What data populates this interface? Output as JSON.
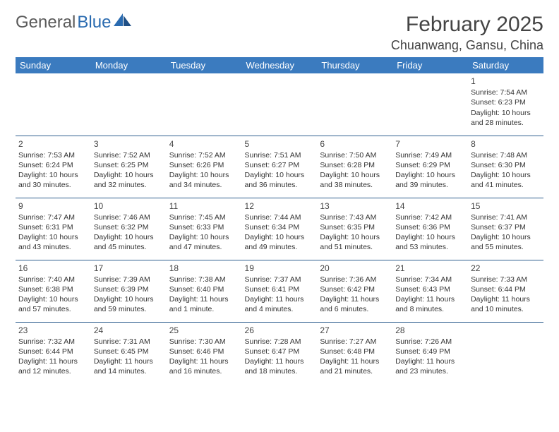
{
  "logo": {
    "text1": "General",
    "text2": "Blue"
  },
  "title": "February 2025",
  "location": "Chuanwang, Gansu, China",
  "colors": {
    "header_bg": "#3b7bbf",
    "header_text": "#ffffff",
    "divider": "#2f5f8f",
    "logo_gray": "#5a5a5a",
    "logo_blue": "#2a6bb0",
    "text": "#333333",
    "title_text": "#444444",
    "background": "#ffffff"
  },
  "day_headers": [
    "Sunday",
    "Monday",
    "Tuesday",
    "Wednesday",
    "Thursday",
    "Friday",
    "Saturday"
  ],
  "weeks": [
    [
      null,
      null,
      null,
      null,
      null,
      null,
      {
        "n": "1",
        "sr": "Sunrise: 7:54 AM",
        "ss": "Sunset: 6:23 PM",
        "dl": "Daylight: 10 hours and 28 minutes."
      }
    ],
    [
      {
        "n": "2",
        "sr": "Sunrise: 7:53 AM",
        "ss": "Sunset: 6:24 PM",
        "dl": "Daylight: 10 hours and 30 minutes."
      },
      {
        "n": "3",
        "sr": "Sunrise: 7:52 AM",
        "ss": "Sunset: 6:25 PM",
        "dl": "Daylight: 10 hours and 32 minutes."
      },
      {
        "n": "4",
        "sr": "Sunrise: 7:52 AM",
        "ss": "Sunset: 6:26 PM",
        "dl": "Daylight: 10 hours and 34 minutes."
      },
      {
        "n": "5",
        "sr": "Sunrise: 7:51 AM",
        "ss": "Sunset: 6:27 PM",
        "dl": "Daylight: 10 hours and 36 minutes."
      },
      {
        "n": "6",
        "sr": "Sunrise: 7:50 AM",
        "ss": "Sunset: 6:28 PM",
        "dl": "Daylight: 10 hours and 38 minutes."
      },
      {
        "n": "7",
        "sr": "Sunrise: 7:49 AM",
        "ss": "Sunset: 6:29 PM",
        "dl": "Daylight: 10 hours and 39 minutes."
      },
      {
        "n": "8",
        "sr": "Sunrise: 7:48 AM",
        "ss": "Sunset: 6:30 PM",
        "dl": "Daylight: 10 hours and 41 minutes."
      }
    ],
    [
      {
        "n": "9",
        "sr": "Sunrise: 7:47 AM",
        "ss": "Sunset: 6:31 PM",
        "dl": "Daylight: 10 hours and 43 minutes."
      },
      {
        "n": "10",
        "sr": "Sunrise: 7:46 AM",
        "ss": "Sunset: 6:32 PM",
        "dl": "Daylight: 10 hours and 45 minutes."
      },
      {
        "n": "11",
        "sr": "Sunrise: 7:45 AM",
        "ss": "Sunset: 6:33 PM",
        "dl": "Daylight: 10 hours and 47 minutes."
      },
      {
        "n": "12",
        "sr": "Sunrise: 7:44 AM",
        "ss": "Sunset: 6:34 PM",
        "dl": "Daylight: 10 hours and 49 minutes."
      },
      {
        "n": "13",
        "sr": "Sunrise: 7:43 AM",
        "ss": "Sunset: 6:35 PM",
        "dl": "Daylight: 10 hours and 51 minutes."
      },
      {
        "n": "14",
        "sr": "Sunrise: 7:42 AM",
        "ss": "Sunset: 6:36 PM",
        "dl": "Daylight: 10 hours and 53 minutes."
      },
      {
        "n": "15",
        "sr": "Sunrise: 7:41 AM",
        "ss": "Sunset: 6:37 PM",
        "dl": "Daylight: 10 hours and 55 minutes."
      }
    ],
    [
      {
        "n": "16",
        "sr": "Sunrise: 7:40 AM",
        "ss": "Sunset: 6:38 PM",
        "dl": "Daylight: 10 hours and 57 minutes."
      },
      {
        "n": "17",
        "sr": "Sunrise: 7:39 AM",
        "ss": "Sunset: 6:39 PM",
        "dl": "Daylight: 10 hours and 59 minutes."
      },
      {
        "n": "18",
        "sr": "Sunrise: 7:38 AM",
        "ss": "Sunset: 6:40 PM",
        "dl": "Daylight: 11 hours and 1 minute."
      },
      {
        "n": "19",
        "sr": "Sunrise: 7:37 AM",
        "ss": "Sunset: 6:41 PM",
        "dl": "Daylight: 11 hours and 4 minutes."
      },
      {
        "n": "20",
        "sr": "Sunrise: 7:36 AM",
        "ss": "Sunset: 6:42 PM",
        "dl": "Daylight: 11 hours and 6 minutes."
      },
      {
        "n": "21",
        "sr": "Sunrise: 7:34 AM",
        "ss": "Sunset: 6:43 PM",
        "dl": "Daylight: 11 hours and 8 minutes."
      },
      {
        "n": "22",
        "sr": "Sunrise: 7:33 AM",
        "ss": "Sunset: 6:44 PM",
        "dl": "Daylight: 11 hours and 10 minutes."
      }
    ],
    [
      {
        "n": "23",
        "sr": "Sunrise: 7:32 AM",
        "ss": "Sunset: 6:44 PM",
        "dl": "Daylight: 11 hours and 12 minutes."
      },
      {
        "n": "24",
        "sr": "Sunrise: 7:31 AM",
        "ss": "Sunset: 6:45 PM",
        "dl": "Daylight: 11 hours and 14 minutes."
      },
      {
        "n": "25",
        "sr": "Sunrise: 7:30 AM",
        "ss": "Sunset: 6:46 PM",
        "dl": "Daylight: 11 hours and 16 minutes."
      },
      {
        "n": "26",
        "sr": "Sunrise: 7:28 AM",
        "ss": "Sunset: 6:47 PM",
        "dl": "Daylight: 11 hours and 18 minutes."
      },
      {
        "n": "27",
        "sr": "Sunrise: 7:27 AM",
        "ss": "Sunset: 6:48 PM",
        "dl": "Daylight: 11 hours and 21 minutes."
      },
      {
        "n": "28",
        "sr": "Sunrise: 7:26 AM",
        "ss": "Sunset: 6:49 PM",
        "dl": "Daylight: 11 hours and 23 minutes."
      },
      null
    ]
  ]
}
